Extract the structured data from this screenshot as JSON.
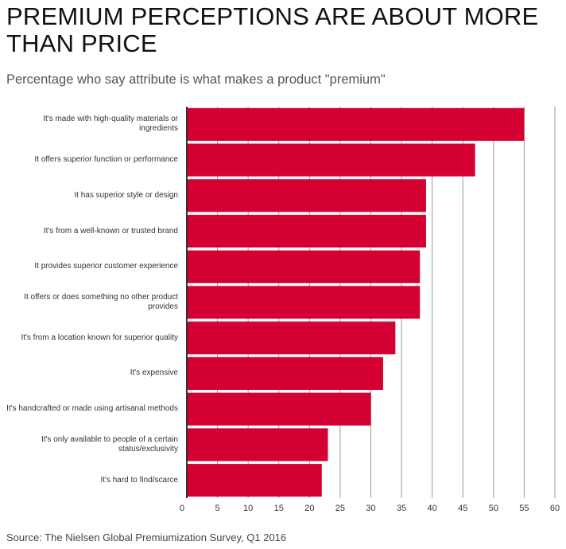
{
  "chart_data": {
    "type": "bar",
    "orientation": "horizontal",
    "title": "PREMIUM PERCEPTIONS ARE ABOUT MORE THAN PRICE",
    "subtitle": "Percentage who say attribute is what makes a product \"premium\"",
    "source": "Source: The Nielsen Global Premiumization Survey, Q1 2016",
    "categories": [
      "It's made with high-quality materials or ingredients",
      "It offers superior function or performance",
      "It has superior style or design",
      "It's from a well-known or trusted brand",
      "It provides superior customer experience",
      "It offers or does something no other product provides",
      "It's from a location known for superior quality",
      "It's expensive",
      "It's handcrafted or made using artisanal methods",
      "It's only available to people of a certain status/exclusivity",
      "It's hard to find/scarce"
    ],
    "values": [
      55,
      47,
      39,
      39,
      38,
      38,
      34,
      32,
      30,
      23,
      22
    ],
    "xlim": [
      0,
      60
    ],
    "xticks": [
      "0",
      "5",
      "10",
      "15",
      "20",
      "25",
      "30",
      "35",
      "40",
      "45",
      "50",
      "55",
      "60"
    ],
    "xlabel": "",
    "ylabel": "",
    "grid": "vertical",
    "colors": {
      "bar": "#d50032",
      "grid": "#9a9a9a",
      "axis": "#333333"
    }
  }
}
